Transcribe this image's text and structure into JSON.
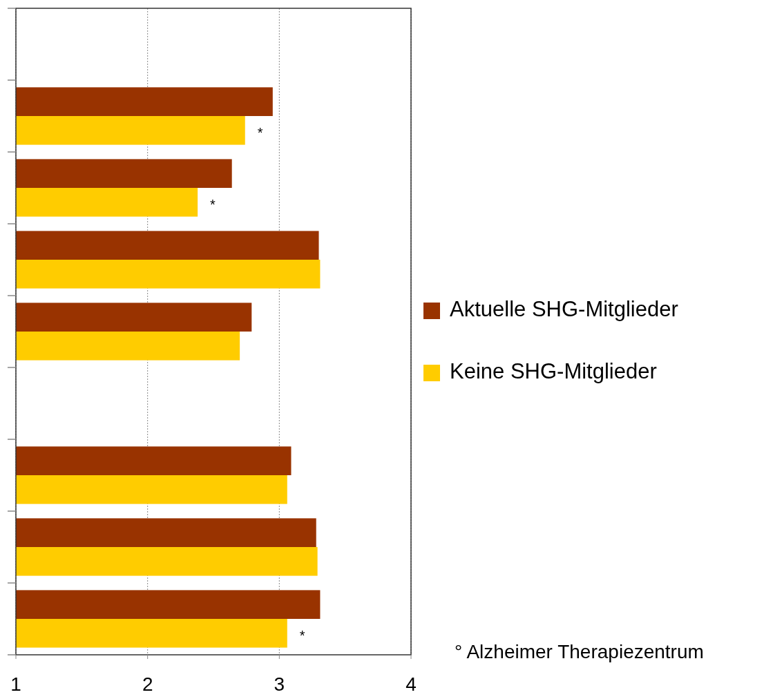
{
  "chart_data": {
    "type": "bar",
    "orientation": "horizontal",
    "categories": [
      null,
      null,
      null,
      null,
      null,
      null,
      null,
      null,
      null
    ],
    "series": [
      {
        "name": "Aktuelle SHG-Mitglieder",
        "color": "#993300",
        "values": [
          null,
          2.95,
          2.64,
          3.3,
          2.79,
          null,
          3.09,
          3.28,
          3.31
        ]
      },
      {
        "name": "Keine SHG-Mitglieder",
        "color": "#ffcc00",
        "values": [
          null,
          2.74,
          2.38,
          3.31,
          2.7,
          null,
          3.06,
          3.29,
          3.06
        ],
        "value_labels": [
          null,
          "*",
          "*",
          null,
          null,
          null,
          null,
          null,
          "*"
        ]
      }
    ],
    "xlim": [
      1,
      4
    ],
    "xticks": [
      1,
      2,
      3,
      4
    ],
    "grid": "x",
    "legend": "right",
    "tick_labels": "x",
    "annotations": [
      "° Alzheimer Therapiezentrum"
    ]
  }
}
